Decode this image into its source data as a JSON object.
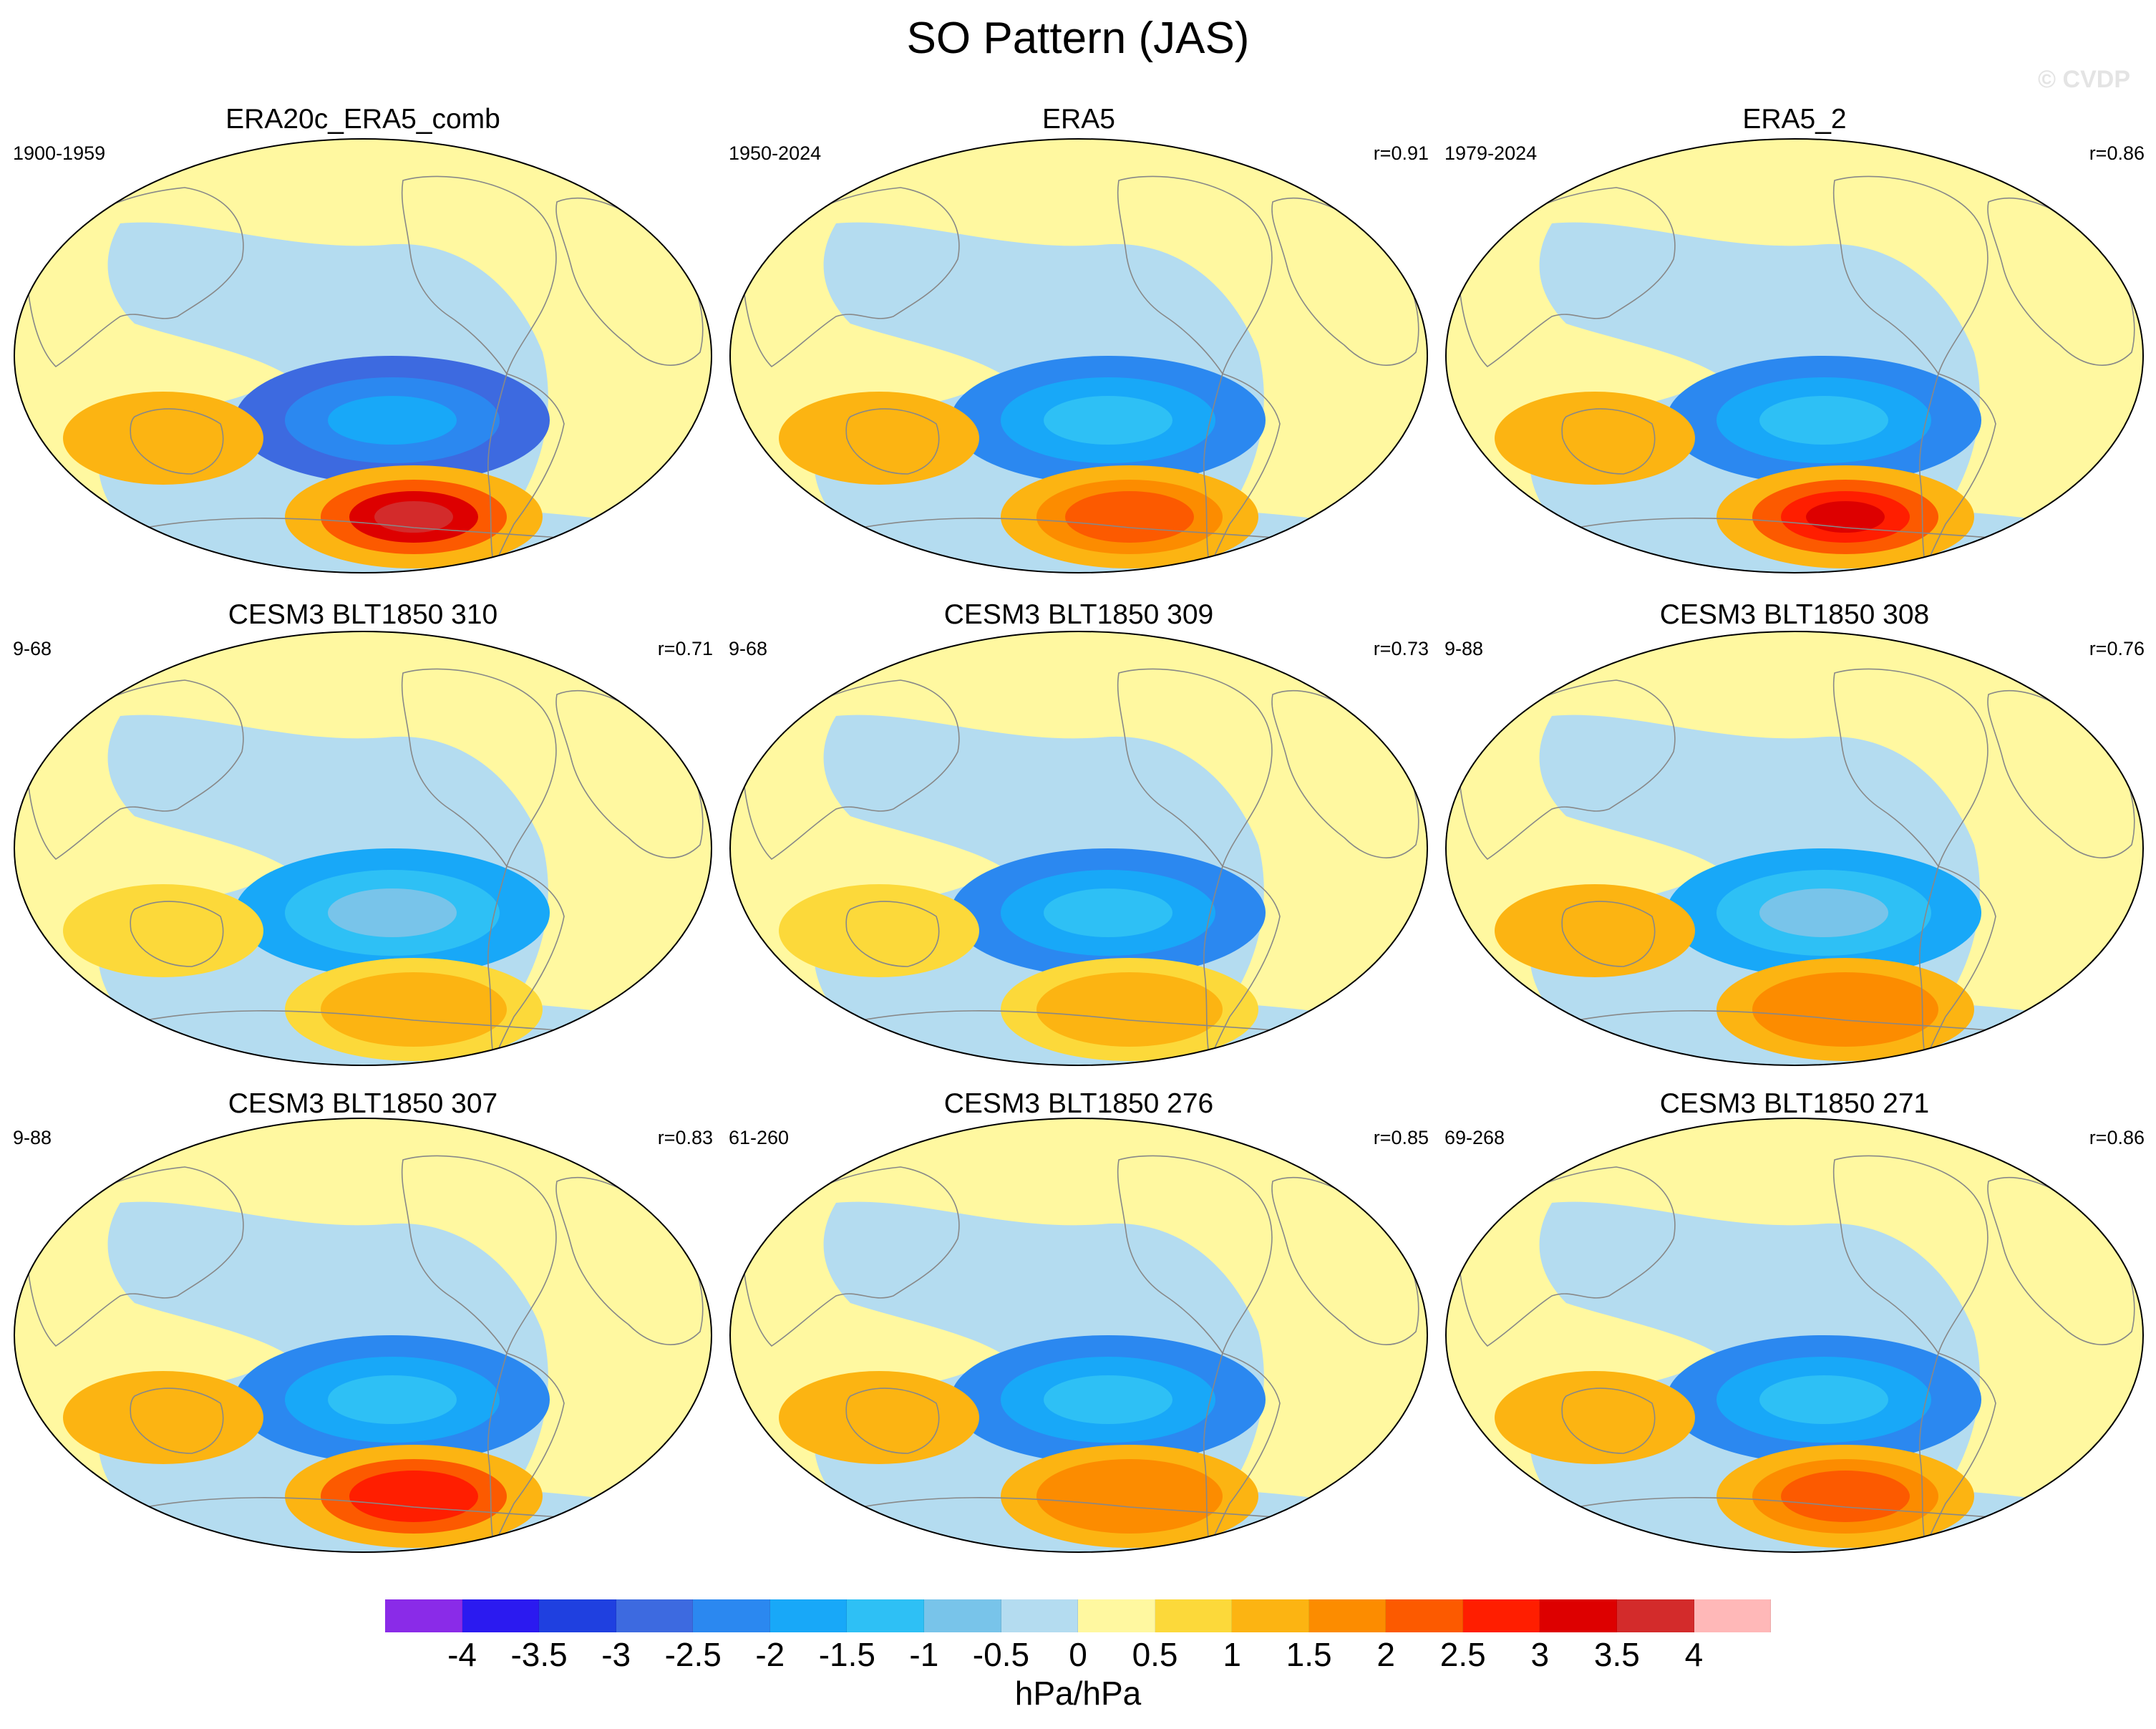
{
  "figure": {
    "title": "SO Pattern (JAS)",
    "watermark": "© CVDP",
    "units": "hPa/hPa"
  },
  "colors": {
    "ocean_fill": "#b4dcf0",
    "land_outline": "#888888",
    "map_border": "#000000"
  },
  "panels": [
    {
      "title": "ERA20c_ERA5_comb",
      "years": "1900-1959",
      "r": "",
      "neg": [
        -3,
        -2.5,
        -2
      ],
      "pos": [
        1,
        2,
        3,
        3.5
      ]
    },
    {
      "title": "ERA5",
      "years": "1950-2024",
      "r": "r=0.91",
      "neg": [
        -2.5,
        -2,
        -1.5
      ],
      "pos": [
        1,
        1.5,
        2
      ]
    },
    {
      "title": "ERA5_2",
      "years": "1979-2024",
      "r": "r=0.86",
      "neg": [
        -2.5,
        -2,
        -1.5
      ],
      "pos": [
        1,
        2,
        2.5,
        3
      ]
    },
    {
      "title": "CESM3 BLT1850 310",
      "years": "9-68",
      "r": "r=0.71",
      "neg": [
        -2,
        -1.5,
        -1
      ],
      "pos": [
        0.5,
        1
      ]
    },
    {
      "title": "CESM3 BLT1850 309",
      "years": "9-68",
      "r": "r=0.73",
      "neg": [
        -2.5,
        -2,
        -1.5
      ],
      "pos": [
        0.5,
        1
      ]
    },
    {
      "title": "CESM3 BLT1850 308",
      "years": "9-88",
      "r": "r=0.76",
      "neg": [
        -2,
        -1.5,
        -1
      ],
      "pos": [
        1,
        1.5
      ]
    },
    {
      "title": "CESM3 BLT1850 307",
      "years": "9-88",
      "r": "r=0.83",
      "neg": [
        -2.5,
        -2,
        -1.5
      ],
      "pos": [
        1,
        2,
        2.5
      ]
    },
    {
      "title": "CESM3 BLT1850 276",
      "years": "61-260",
      "r": "r=0.85",
      "neg": [
        -2.5,
        -2,
        -1.5
      ],
      "pos": [
        1,
        1.5
      ]
    },
    {
      "title": "CESM3 BLT1850 271",
      "years": "69-268",
      "r": "r=0.86",
      "neg": [
        -2.5,
        -2,
        -1.5
      ],
      "pos": [
        1,
        1.5,
        2
      ]
    }
  ],
  "colorbar": {
    "colors": [
      "#8a2be8",
      "#2b1af0",
      "#1f40e0",
      "#3d6ae0",
      "#2b88f0",
      "#18a8f8",
      "#2ec0f5",
      "#78c4ea",
      "#b4dcf0",
      "#fff8a0",
      "#fcd93a",
      "#fcb412",
      "#fc8c00",
      "#fc5a00",
      "#ff1e00",
      "#dd0000",
      "#d32b2b",
      "#ffb8b8"
    ],
    "tick_labels": [
      "-4",
      "-3.5",
      "-3",
      "-2.5",
      "-2",
      "-1.5",
      "-1",
      "-0.5",
      "0",
      "0.5",
      "1",
      "1.5",
      "2",
      "2.5",
      "3",
      "3.5",
      "4"
    ]
  }
}
